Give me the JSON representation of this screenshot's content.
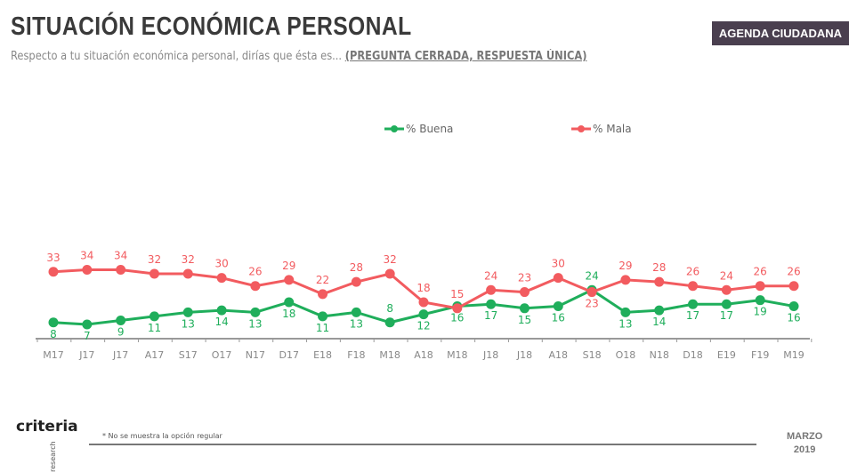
{
  "header": {
    "title": "SITUACIÓN ECONÓMICA PERSONAL",
    "subtitle": "Respecto a tu situación económica personal, dirías que ésta es...",
    "subtitle_note": "(PREGUNTA CERRADA, RESPUESTA ÚNICA)",
    "badge": "AGENDA CIUDADANA"
  },
  "footer": {
    "logo": "criteria",
    "logo_sub": "research",
    "note": "* No se muestra la opción regular",
    "month": "MARZO",
    "year": "2019"
  },
  "chart_data": {
    "type": "line",
    "title": "",
    "xlabel": "",
    "ylabel": "",
    "ylim": [
      0,
      60
    ],
    "grid": false,
    "legend": "top",
    "categories": [
      "M17",
      "J17",
      "J17",
      "A17",
      "S17",
      "O17",
      "N17",
      "D17",
      "E18",
      "F18",
      "M18",
      "A18",
      "M18",
      "J18",
      "J18",
      "A18",
      "S18",
      "O18",
      "N18",
      "D18",
      "E19",
      "F19",
      "M19"
    ],
    "series": [
      {
        "name": "% Buena",
        "color": "#1fae5b",
        "values": [
          8,
          7,
          9,
          11,
          13,
          14,
          13,
          18,
          11,
          13,
          8,
          12,
          16,
          17,
          15,
          16,
          24,
          13,
          14,
          17,
          17,
          19,
          16
        ]
      },
      {
        "name": "% Mala",
        "color": "#f25b5f",
        "values": [
          33,
          34,
          34,
          32,
          32,
          30,
          26,
          29,
          22,
          28,
          32,
          18,
          15,
          24,
          23,
          30,
          23,
          29,
          28,
          26,
          24,
          26,
          26
        ]
      }
    ]
  }
}
